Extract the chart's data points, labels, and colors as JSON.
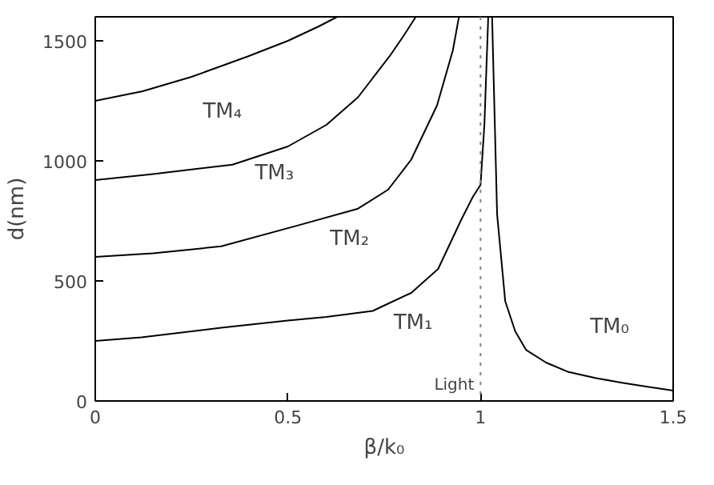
{
  "chart_data": {
    "type": "line",
    "xlabel": "β/k₀",
    "ylabel": "d(nm)",
    "xlim": [
      0,
      1.5
    ],
    "ylim": [
      0,
      1600
    ],
    "xticks": [
      0,
      0.5,
      1,
      1.5
    ],
    "yticks": [
      0,
      500,
      1000,
      1500
    ],
    "grid": false,
    "line_style": "solid",
    "marker": "none",
    "series": [
      {
        "name": "TM₀",
        "color": "#000000",
        "x": [
          1.03,
          1.043,
          1.064,
          1.09,
          1.118,
          1.17,
          1.226,
          1.3,
          1.364,
          1.43,
          1.5
        ],
        "values": [
          1600,
          778,
          416,
          290,
          213,
          160,
          122,
          95,
          77,
          60,
          43
        ]
      },
      {
        "name": "TM₁",
        "color": "#000000",
        "x": [
          0,
          0.12,
          0.327,
          0.5,
          0.6,
          0.72,
          0.82,
          0.89,
          0.95,
          0.98,
          1.0,
          1.01,
          1.02
        ],
        "values": [
          250,
          265,
          305,
          335,
          350,
          375,
          450,
          550,
          755,
          850,
          900,
          1150,
          1600
        ]
      },
      {
        "name": "TM₂",
        "color": "#000000",
        "x": [
          0,
          0.15,
          0.327,
          0.53,
          0.682,
          0.76,
          0.82,
          0.887,
          0.928,
          0.944
        ],
        "values": [
          600,
          615,
          644,
          733,
          801,
          880,
          1005,
          1231,
          1459,
          1600
        ]
      },
      {
        "name": "TM₃",
        "color": "#000000",
        "x": [
          0,
          0.15,
          0.356,
          0.5,
          0.6,
          0.682,
          0.764,
          0.8,
          0.832
        ],
        "values": [
          920,
          945,
          984,
          1060,
          1150,
          1265,
          1436,
          1520,
          1600
        ]
      },
      {
        "name": "TM₄",
        "color": "#000000",
        "x": [
          0,
          0.123,
          0.25,
          0.396,
          0.5,
          0.58,
          0.628
        ],
        "values": [
          1250,
          1290,
          1350,
          1435,
          1500,
          1560,
          1600
        ]
      }
    ],
    "ref_lines": [
      {
        "axis": "x",
        "value": 1,
        "label": "Light",
        "color": "#808080",
        "line_style": "dotted"
      }
    ]
  }
}
